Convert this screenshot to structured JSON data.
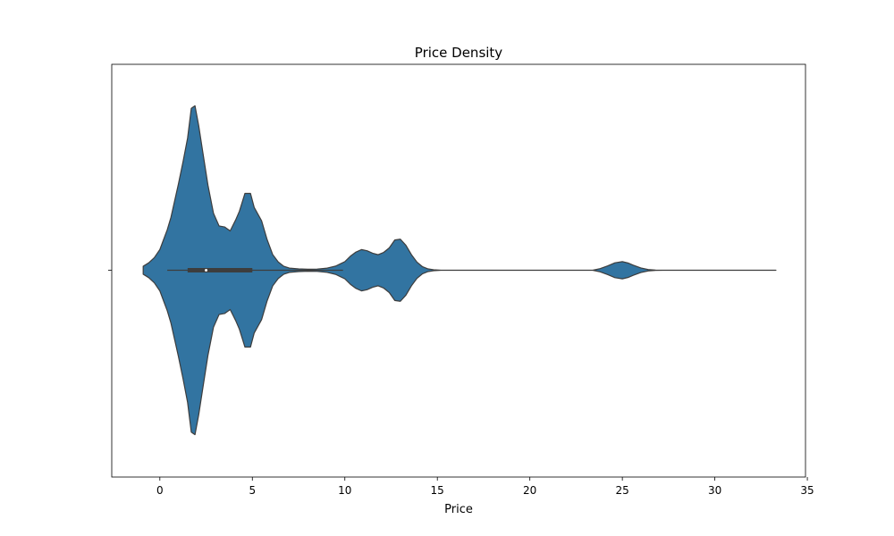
{
  "chart_data": {
    "type": "violin",
    "title": "Price Density",
    "xlabel": "Price",
    "ylabel": "",
    "xlim": [
      -2.6,
      34.9
    ],
    "xticks": [
      0,
      5,
      10,
      15,
      20,
      25,
      30,
      35
    ],
    "xtick_labels": [
      "0",
      "5",
      "10",
      "15",
      "20",
      "25",
      "30",
      "35"
    ],
    "grid": false,
    "legend": "none",
    "colors": {
      "fill": "#3274a1",
      "edge": "#3d3d3d",
      "box": "#3d3d3d"
    },
    "density_relative_halfwidth": {
      "x": [
        -0.9,
        -0.6,
        -0.3,
        0.0,
        0.2,
        0.4,
        0.6,
        0.8,
        1.0,
        1.25,
        1.5,
        1.7,
        1.9,
        2.1,
        2.3,
        2.6,
        2.9,
        3.2,
        3.5,
        3.8,
        4.1,
        4.3,
        4.6,
        4.9,
        5.1,
        5.5,
        5.8,
        6.1,
        6.4,
        6.7,
        7.0,
        7.5,
        8.0,
        8.5,
        9.0,
        9.5,
        10.0,
        10.3,
        10.6,
        10.9,
        11.2,
        11.5,
        11.8,
        12.1,
        12.4,
        12.7,
        13.0,
        13.3,
        13.6,
        13.9,
        14.2,
        14.5,
        14.8,
        15.2,
        23.4,
        23.8,
        24.2,
        24.6,
        25.0,
        25.3,
        25.6,
        26.0,
        26.4,
        26.8,
        27.2,
        33.3
      ],
      "density": [
        0.024,
        0.045,
        0.076,
        0.125,
        0.185,
        0.245,
        0.32,
        0.42,
        0.52,
        0.655,
        0.8,
        0.98,
        0.995,
        0.875,
        0.73,
        0.515,
        0.345,
        0.268,
        0.262,
        0.238,
        0.305,
        0.357,
        0.465,
        0.465,
        0.38,
        0.299,
        0.185,
        0.095,
        0.05,
        0.024,
        0.013,
        0.008,
        0.006,
        0.007,
        0.012,
        0.025,
        0.052,
        0.085,
        0.11,
        0.125,
        0.118,
        0.103,
        0.094,
        0.108,
        0.135,
        0.183,
        0.188,
        0.151,
        0.094,
        0.049,
        0.021,
        0.008,
        0.003,
        0.0,
        0.0,
        0.01,
        0.026,
        0.045,
        0.052,
        0.044,
        0.03,
        0.014,
        0.004,
        0.001,
        0.0,
        0.0
      ]
    },
    "box": {
      "whisker_low": 0.4,
      "q1": 1.5,
      "median": 2.5,
      "q3": 5.0,
      "whisker_high": 9.9
    }
  }
}
